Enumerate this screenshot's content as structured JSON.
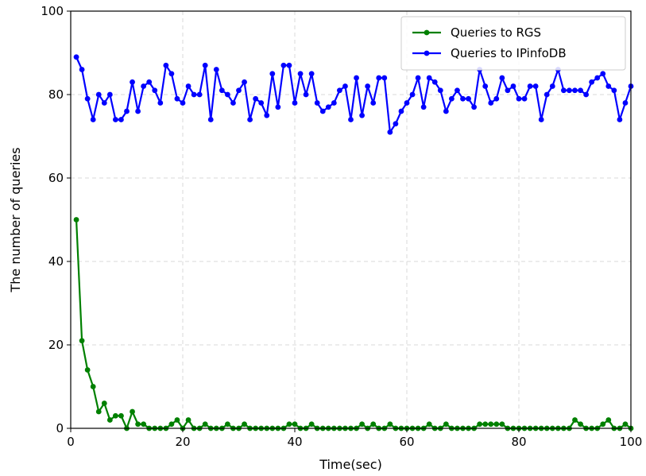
{
  "chart_data": {
    "type": "line",
    "title": "",
    "xlabel": "Time(sec)",
    "ylabel": "The number of queries",
    "xlim": [
      0,
      100
    ],
    "ylim": [
      0,
      100
    ],
    "xticks": [
      0,
      20,
      40,
      60,
      80,
      100
    ],
    "yticks": [
      0,
      20,
      40,
      60,
      80,
      100
    ],
    "grid": true,
    "legend_position": "top-right",
    "x": [
      1,
      2,
      3,
      4,
      5,
      6,
      7,
      8,
      9,
      10,
      11,
      12,
      13,
      14,
      15,
      16,
      17,
      18,
      19,
      20,
      21,
      22,
      23,
      24,
      25,
      26,
      27,
      28,
      29,
      30,
      31,
      32,
      33,
      34,
      35,
      36,
      37,
      38,
      39,
      40,
      41,
      42,
      43,
      44,
      45,
      46,
      47,
      48,
      49,
      50,
      51,
      52,
      53,
      54,
      55,
      56,
      57,
      58,
      59,
      60,
      61,
      62,
      63,
      64,
      65,
      66,
      67,
      68,
      69,
      70,
      71,
      72,
      73,
      74,
      75,
      76,
      77,
      78,
      79,
      80,
      81,
      82,
      83,
      84,
      85,
      86,
      87,
      88,
      89,
      90,
      91,
      92,
      93,
      94,
      95,
      96,
      97,
      98,
      99,
      100
    ],
    "series": [
      {
        "name": "Queries to RGS",
        "color": "#008000",
        "values": [
          50,
          21,
          14,
          10,
          4,
          6,
          2,
          3,
          3,
          0,
          4,
          1,
          1,
          0,
          0,
          0,
          0,
          1,
          2,
          0,
          2,
          0,
          0,
          1,
          0,
          0,
          0,
          1,
          0,
          0,
          1,
          0,
          0,
          0,
          0,
          0,
          0,
          0,
          1,
          1,
          0,
          0,
          1,
          0,
          0,
          0,
          0,
          0,
          0,
          0,
          0,
          1,
          0,
          1,
          0,
          0,
          1,
          0,
          0,
          0,
          0,
          0,
          0,
          1,
          0,
          0,
          1,
          0,
          0,
          0,
          0,
          0,
          1,
          1,
          1,
          1,
          1,
          0,
          0,
          0,
          0,
          0,
          0,
          0,
          0,
          0,
          0,
          0,
          0,
          2,
          1,
          0,
          0,
          0,
          1,
          2,
          0,
          0,
          1,
          0
        ]
      },
      {
        "name": "Queries to IPinfoDB",
        "color": "#0000ff",
        "values": [
          89,
          86,
          79,
          74,
          80,
          78,
          80,
          74,
          74,
          76,
          83,
          76,
          82,
          83,
          81,
          78,
          87,
          85,
          79,
          78,
          82,
          80,
          80,
          87,
          74,
          86,
          81,
          80,
          78,
          81,
          83,
          74,
          79,
          78,
          75,
          85,
          77,
          87,
          87,
          78,
          85,
          80,
          85,
          78,
          76,
          77,
          78,
          81,
          82,
          74,
          84,
          75,
          82,
          78,
          84,
          84,
          71,
          73,
          76,
          78,
          80,
          84,
          77,
          84,
          83,
          81,
          76,
          79,
          81,
          79,
          79,
          77,
          86,
          82,
          78,
          79,
          84,
          81,
          82,
          79,
          79,
          82,
          82,
          74,
          80,
          82,
          86,
          81,
          81,
          81,
          81,
          80,
          83,
          84,
          85,
          82,
          81,
          74,
          78,
          82
        ]
      }
    ]
  }
}
